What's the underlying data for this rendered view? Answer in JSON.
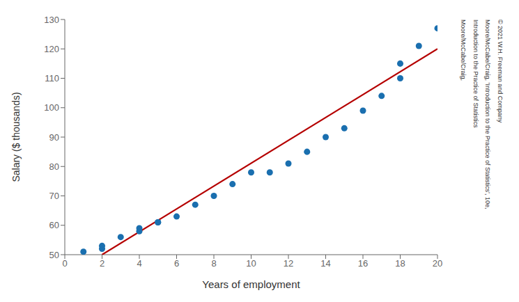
{
  "chart_data": {
    "type": "scatter",
    "series": [
      {
        "type": "scatter",
        "color": "#1a6faf",
        "x": [
          1,
          2,
          2,
          3,
          4,
          4,
          5,
          5,
          6,
          7,
          8,
          9,
          10,
          11,
          12,
          13,
          14,
          15,
          16,
          17,
          18,
          18,
          19,
          20
        ],
        "values": [
          51,
          53,
          52,
          56,
          58,
          59,
          61,
          61,
          63,
          67,
          70,
          74,
          78,
          78,
          81,
          85,
          90,
          93,
          99,
          104,
          110,
          115,
          121,
          127
        ]
      },
      {
        "type": "line",
        "color": "#b50000",
        "x": [
          2.0,
          20.0
        ],
        "values": [
          50.0,
          120.0
        ]
      }
    ],
    "xlabel": "Years of employment",
    "ylabel": "Salary ($ thousands)",
    "xlim": [
      0,
      20
    ],
    "ylim": [
      50,
      130
    ],
    "xticks": [
      0,
      2,
      4,
      6,
      8,
      10,
      12,
      14,
      16,
      18,
      20
    ],
    "yticks": [
      50,
      60,
      70,
      80,
      90,
      100,
      110,
      120,
      130
    ],
    "grid": false,
    "annotations": [
      "Moore/McCabe/Craig, ",
      "Introduction to the Practice of Statistics",
      "Moore/McCabe/Craig, ’Introduction to the Practice of Statistics’, 10e,",
      "© 2021 W.H. Freeman and Company"
    ]
  }
}
